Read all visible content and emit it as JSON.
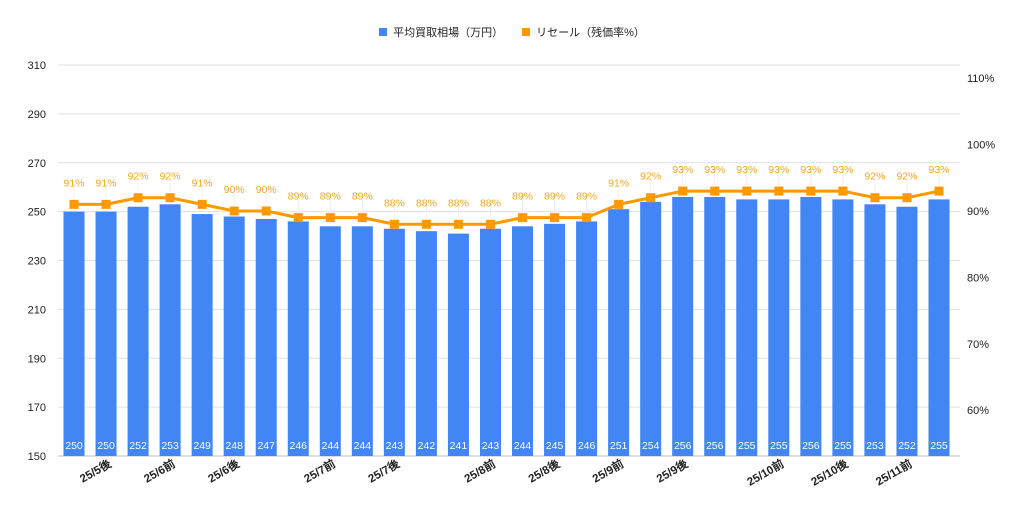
{
  "chart_data": {
    "type": "bar+line",
    "title": "",
    "legend": [
      {
        "name": "平均買取相場（万円）",
        "color": "#4285f4",
        "type": "bar"
      },
      {
        "name": "リセール（残価率%）",
        "color": "#ff9900",
        "type": "line"
      }
    ],
    "legend_position": "top",
    "categories": [
      "",
      "25/5後",
      "",
      "25/6前",
      "",
      "25/6後",
      "",
      "",
      "25/7前",
      "",
      "25/7後",
      "",
      "",
      "25/8前",
      "",
      "25/8後",
      "",
      "25/9前",
      "",
      "25/9後",
      "",
      "",
      "25/10前",
      "",
      "25/10後",
      "",
      "25/11前",
      ""
    ],
    "series": [
      {
        "name": "平均買取相場（万円）",
        "axis": "left",
        "type": "bar",
        "values": [
          250,
          250,
          252,
          253,
          249,
          248,
          247,
          246,
          244,
          244,
          243,
          242,
          241,
          243,
          244,
          245,
          246,
          251,
          254,
          256,
          256,
          255,
          255,
          256,
          255,
          253,
          252,
          255
        ]
      },
      {
        "name": "リセール（残価率%）",
        "axis": "right",
        "type": "line",
        "values": [
          91,
          91,
          92,
          92,
          91,
          90,
          90,
          89,
          89,
          89,
          88,
          88,
          88,
          88,
          89,
          89,
          89,
          91,
          92,
          93,
          93,
          93,
          93,
          93,
          93,
          92,
          92,
          93
        ]
      }
    ],
    "left_axis": {
      "ticks": [
        150,
        170,
        190,
        210,
        230,
        250,
        270,
        290,
        310
      ],
      "ylim": [
        150,
        310
      ]
    },
    "right_axis": {
      "ticks": [
        "60%",
        "70%",
        "80%",
        "90%",
        "100%",
        "110%"
      ],
      "ylim": [
        54,
        112
      ]
    },
    "grid": true,
    "xlabel": "",
    "ylabel": ""
  }
}
